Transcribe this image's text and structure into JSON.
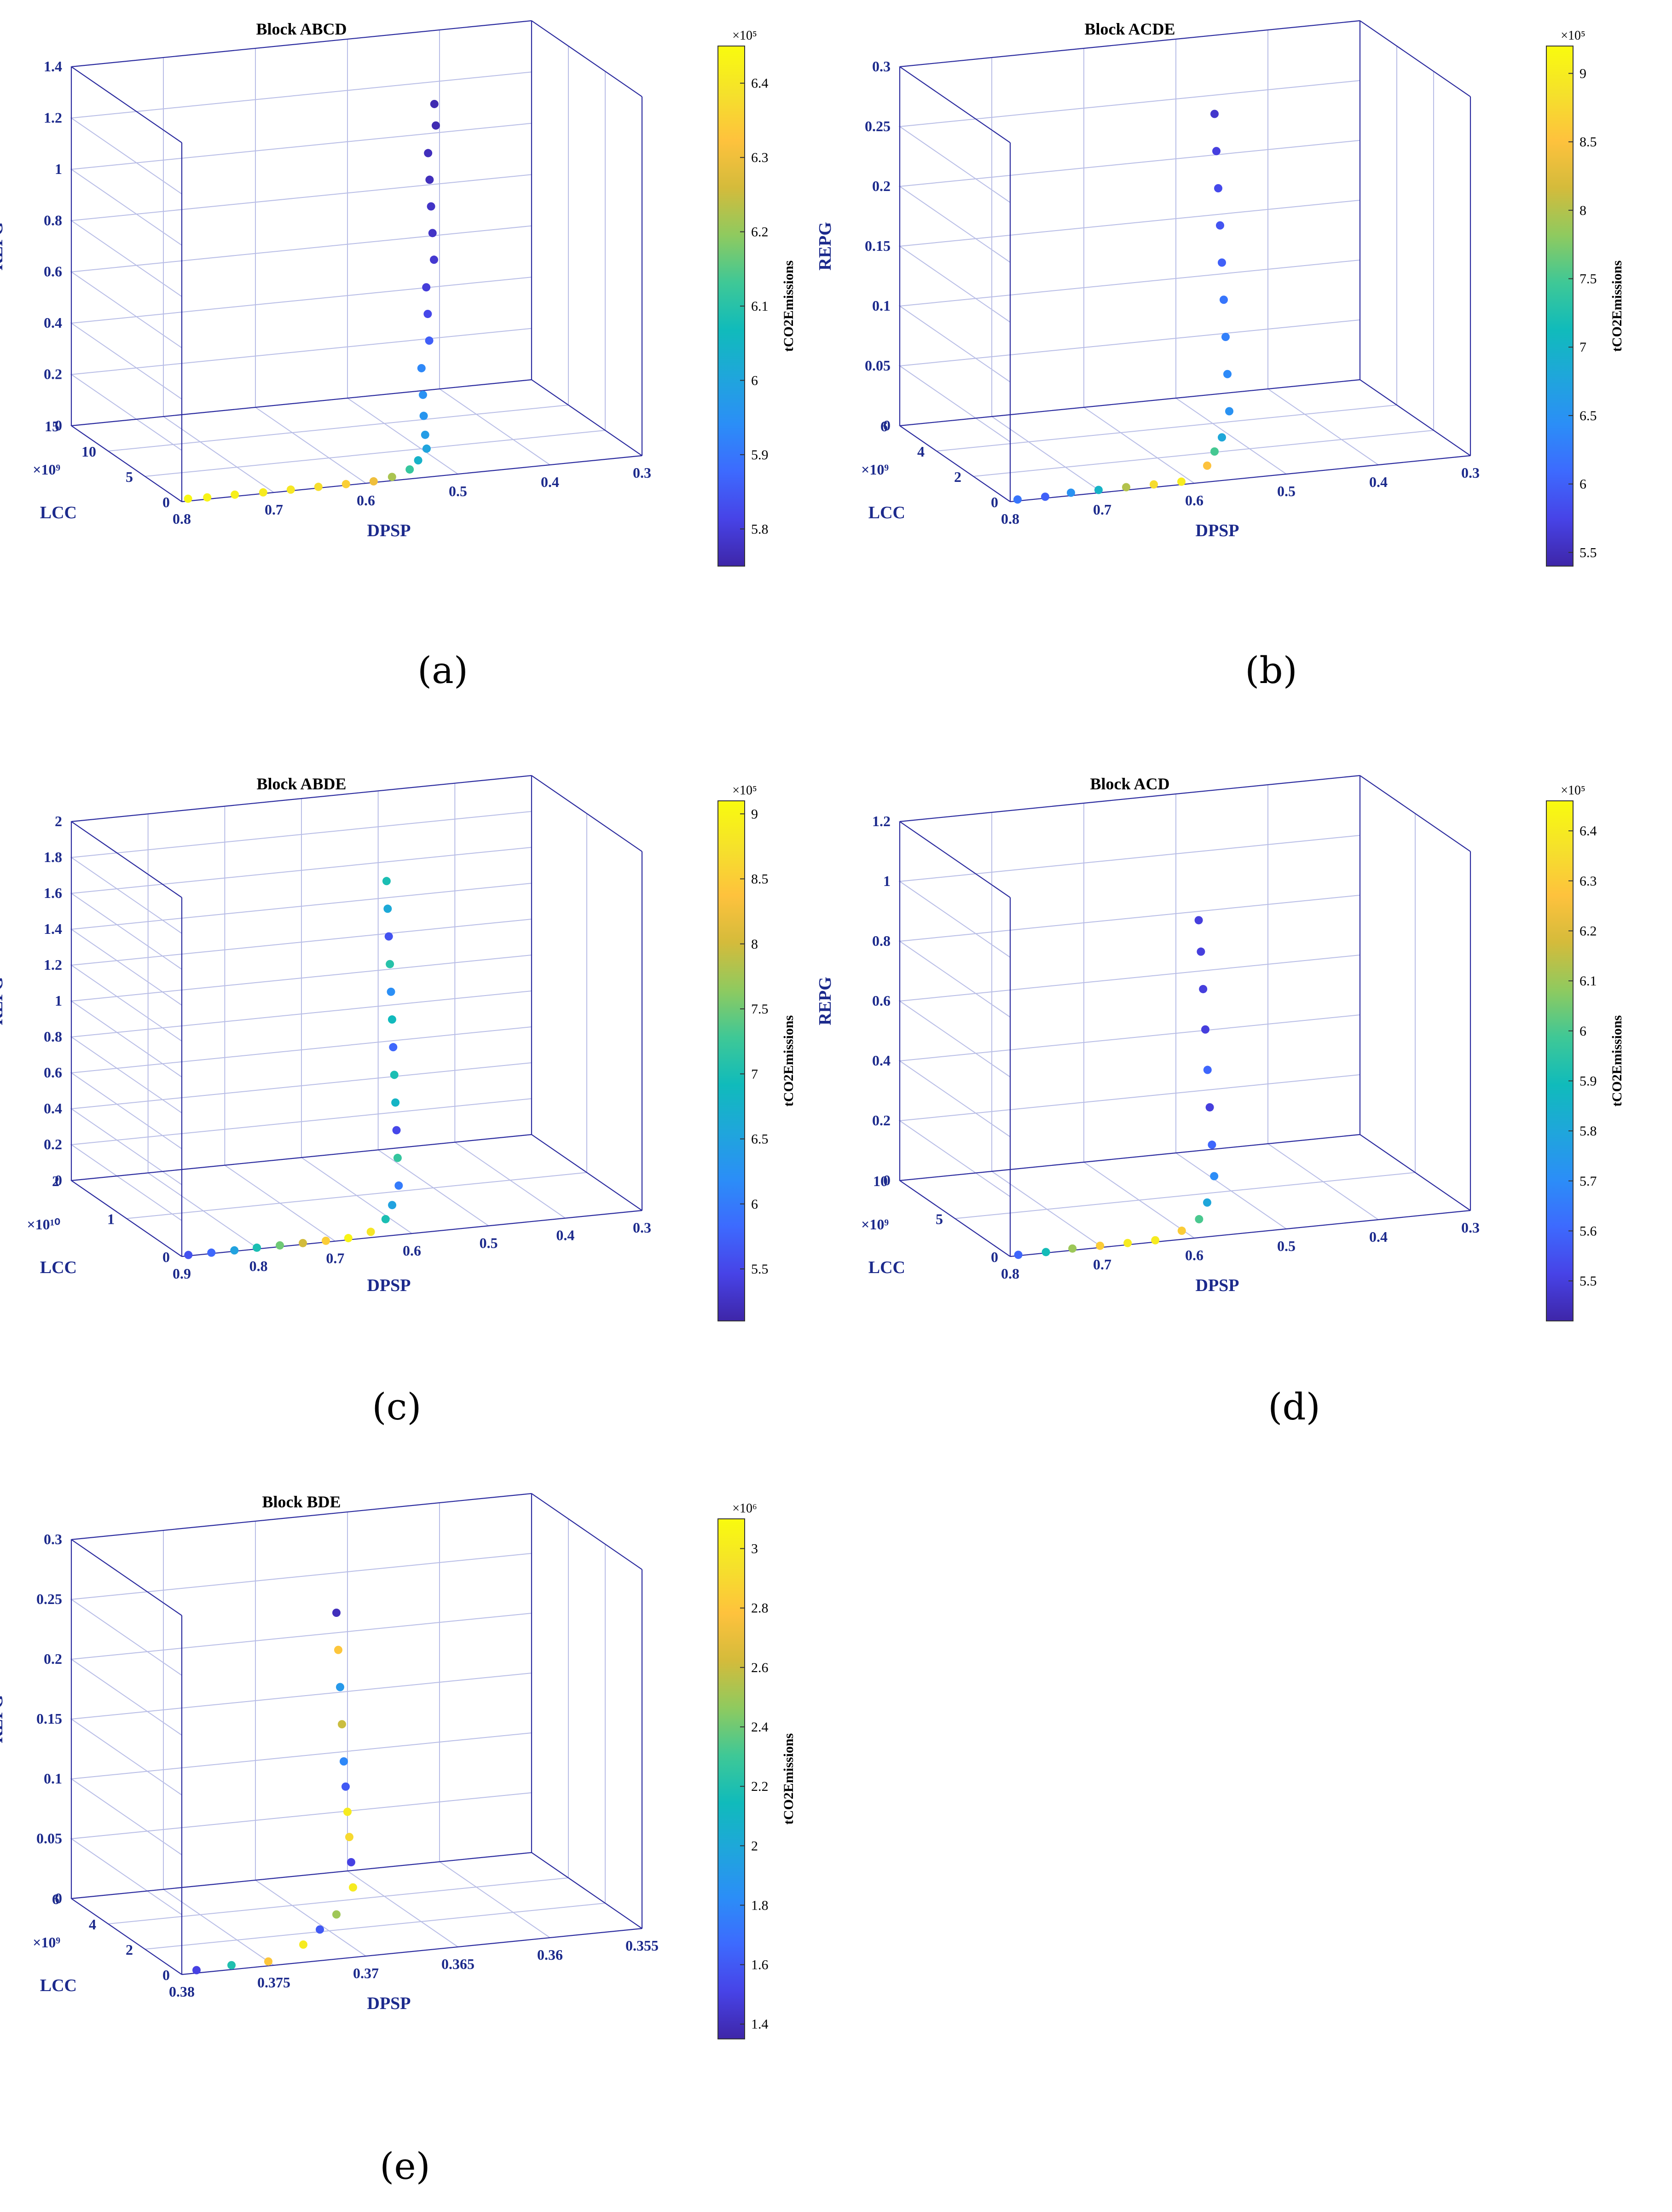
{
  "figure": {
    "colormap": [
      "#3e26a8",
      "#4743e7",
      "#3d6afe",
      "#2b8ef7",
      "#1fa6db",
      "#10bbbb",
      "#3fc896",
      "#8fca5f",
      "#d4bb3b",
      "#fec23d",
      "#f5e12b",
      "#f9fb0e"
    ],
    "panels": [
      {
        "caption": "(a)",
        "chart_data": {
          "type": "scatter3d",
          "title": "Block ABCD",
          "xlabel": "DPSP",
          "ylabel": "LCC",
          "zlabel": "REPG",
          "colorbar_label": "tCO2Emissions",
          "xlim": [
            0.3,
            0.8
          ],
          "x_ticks": [
            "0.8",
            "0.7",
            "0.6",
            "0.5",
            "0.4",
            "0.3"
          ],
          "ylim": [
            0,
            15
          ],
          "y_ticks": [
            "0",
            "5",
            "10",
            "15"
          ],
          "y_exponent": "×10⁹",
          "zlim": [
            0,
            1.4
          ],
          "z_ticks": [
            "0",
            "0.2",
            "0.4",
            "0.6",
            "0.8",
            "1",
            "1.2",
            "1.4"
          ],
          "clim": [
            5.75,
            6.45
          ],
          "c_ticks": [
            "5.8",
            "5.9",
            "6",
            "6.1",
            "6.2",
            "6.3",
            "6.4"
          ],
          "c_exponent": "×10⁵",
          "points": [
            [
              0.79,
              0.4,
              0.0,
              6.44
            ],
            [
              0.77,
              0.3,
              0.0,
              6.43
            ],
            [
              0.74,
              0.3,
              0.0,
              6.42
            ],
            [
              0.71,
              0.2,
              0.0,
              6.41
            ],
            [
              0.68,
              0.2,
              0.0,
              6.4
            ],
            [
              0.65,
              0.2,
              0.0,
              6.38
            ],
            [
              0.62,
              0.2,
              0.0,
              6.35
            ],
            [
              0.59,
              0.2,
              0.0,
              6.3
            ],
            [
              0.57,
              0.2,
              0.01,
              6.22
            ],
            [
              0.55,
              0.3,
              0.03,
              6.12
            ],
            [
              0.54,
              0.4,
              0.06,
              6.04
            ],
            [
              0.53,
              0.5,
              0.1,
              6.0
            ],
            [
              0.53,
              0.7,
              0.15,
              5.98
            ],
            [
              0.53,
              0.9,
              0.22,
              5.96
            ],
            [
              0.53,
              1.0,
              0.3,
              5.95
            ],
            [
              0.53,
              1.2,
              0.4,
              5.93
            ],
            [
              0.52,
              1.4,
              0.5,
              5.86
            ],
            [
              0.52,
              1.6,
              0.6,
              5.82
            ],
            [
              0.52,
              1.8,
              0.7,
              5.8
            ],
            [
              0.51,
              2.0,
              0.8,
              5.79
            ],
            [
              0.51,
              2.2,
              0.9,
              5.78
            ],
            [
              0.51,
              2.4,
              1.0,
              5.78
            ],
            [
              0.51,
              2.6,
              1.1,
              5.77
            ],
            [
              0.51,
              2.8,
              1.2,
              5.77
            ],
            [
              0.5,
              3.0,
              1.3,
              5.76
            ],
            [
              0.5,
              3.2,
              1.38,
              5.76
            ]
          ]
        }
      },
      {
        "caption": "(b)",
        "chart_data": {
          "type": "scatter3d",
          "title": "Block ACDE",
          "xlabel": "DPSP",
          "ylabel": "LCC",
          "zlabel": "REPG",
          "colorbar_label": "tCO2Emissions",
          "xlim": [
            0.3,
            0.8
          ],
          "x_ticks": [
            "0.8",
            "0.7",
            "0.6",
            "0.5",
            "0.4",
            "0.3"
          ],
          "ylim": [
            0,
            6
          ],
          "y_ticks": [
            "0",
            "2",
            "4",
            "6"
          ],
          "y_exponent": "×10⁹",
          "zlim": [
            0,
            0.3
          ],
          "z_ticks": [
            "0",
            "0.05",
            "0.1",
            "0.15",
            "0.2",
            "0.25",
            "0.3"
          ],
          "clim": [
            5.4,
            9.2
          ],
          "c_ticks": [
            "5.5",
            "6",
            "6.5",
            "7",
            "7.5",
            "8",
            "8.5",
            "9"
          ],
          "c_exponent": "×10⁵",
          "points": [
            [
              0.79,
              0.1,
              0.0,
              6.2
            ],
            [
              0.76,
              0.1,
              0.0,
              6.0
            ],
            [
              0.73,
              0.2,
              0.0,
              6.5
            ],
            [
              0.7,
              0.2,
              0.0,
              7.0
            ],
            [
              0.67,
              0.2,
              0.0,
              8.0
            ],
            [
              0.64,
              0.2,
              0.0,
              8.8
            ],
            [
              0.61,
              0.2,
              0.0,
              9.0
            ],
            [
              0.58,
              0.3,
              0.01,
              8.5
            ],
            [
              0.57,
              0.4,
              0.02,
              7.5
            ],
            [
              0.56,
              0.5,
              0.03,
              6.8
            ],
            [
              0.55,
              0.6,
              0.05,
              6.5
            ],
            [
              0.55,
              0.7,
              0.08,
              6.4
            ],
            [
              0.55,
              0.8,
              0.11,
              6.3
            ],
            [
              0.55,
              0.9,
              0.14,
              6.2
            ],
            [
              0.55,
              1.0,
              0.17,
              6.0
            ],
            [
              0.55,
              1.1,
              0.2,
              5.9
            ],
            [
              0.55,
              1.2,
              0.23,
              5.8
            ],
            [
              0.55,
              1.3,
              0.26,
              5.7
            ],
            [
              0.55,
              1.4,
              0.29,
              5.6
            ]
          ]
        }
      },
      {
        "caption": "(c)",
        "chart_data": {
          "type": "scatter3d",
          "title": "Block ABDE",
          "xlabel": "DPSP",
          "ylabel": "LCC",
          "zlabel": "REPG",
          "colorbar_label": "tCO2Emissions",
          "xlim": [
            0.3,
            0.9
          ],
          "x_ticks": [
            "0.9",
            "0.8",
            "0.7",
            "0.6",
            "0.5",
            "0.4",
            "0.3"
          ],
          "ylim": [
            0,
            2
          ],
          "y_ticks": [
            "0",
            "1",
            "2"
          ],
          "y_exponent": "×10¹⁰",
          "zlim": [
            0,
            2
          ],
          "z_ticks": [
            "0",
            "0.2",
            "0.4",
            "0.6",
            "0.8",
            "1",
            "1.2",
            "1.4",
            "1.6",
            "1.8",
            "2"
          ],
          "clim": [
            5.1,
            9.1
          ],
          "c_ticks": [
            "5.5",
            "6",
            "6.5",
            "7",
            "7.5",
            "8",
            "8.5",
            "9"
          ],
          "c_exponent": "×10⁵",
          "points": [
            [
              0.89,
              0.02,
              0.0,
              5.6
            ],
            [
              0.86,
              0.02,
              0.0,
              5.8
            ],
            [
              0.83,
              0.02,
              0.0,
              6.5
            ],
            [
              0.8,
              0.03,
              0.0,
              7.0
            ],
            [
              0.77,
              0.03,
              0.0,
              7.5
            ],
            [
              0.74,
              0.03,
              0.0,
              8.0
            ],
            [
              0.71,
              0.03,
              0.0,
              8.5
            ],
            [
              0.68,
              0.04,
              0.0,
              9.0
            ],
            [
              0.65,
              0.05,
              0.02,
              8.8
            ],
            [
              0.63,
              0.06,
              0.08,
              7.0
            ],
            [
              0.62,
              0.08,
              0.15,
              6.5
            ],
            [
              0.61,
              0.1,
              0.25,
              6.0
            ],
            [
              0.61,
              0.12,
              0.4,
              7.2
            ],
            [
              0.61,
              0.14,
              0.55,
              5.5
            ],
            [
              0.61,
              0.16,
              0.7,
              6.8
            ],
            [
              0.61,
              0.18,
              0.85,
              7.0
            ],
            [
              0.61,
              0.2,
              1.0,
              5.8
            ],
            [
              0.61,
              0.22,
              1.15,
              6.9
            ],
            [
              0.61,
              0.24,
              1.3,
              6.2
            ],
            [
              0.61,
              0.26,
              1.45,
              7.1
            ],
            [
              0.61,
              0.28,
              1.6,
              5.6
            ],
            [
              0.61,
              0.3,
              1.75,
              6.6
            ],
            [
              0.61,
              0.32,
              1.9,
              7.0
            ]
          ]
        }
      },
      {
        "caption": "(d)",
        "chart_data": {
          "type": "scatter3d",
          "title": "Block ACD",
          "xlabel": "DPSP",
          "ylabel": "LCC",
          "zlabel": "REPG",
          "colorbar_label": "tCO2Emissions",
          "xlim": [
            0.3,
            0.8
          ],
          "x_ticks": [
            "0.8",
            "0.7",
            "0.6",
            "0.5",
            "0.4",
            "0.3"
          ],
          "ylim": [
            0,
            10
          ],
          "y_ticks": [
            "0",
            "5",
            "10"
          ],
          "y_exponent": "×10⁹",
          "zlim": [
            0,
            1.2
          ],
          "z_ticks": [
            "0",
            "0.2",
            "0.4",
            "0.6",
            "0.8",
            "1",
            "1.2"
          ],
          "clim": [
            5.42,
            6.46
          ],
          "c_ticks": [
            "5.5",
            "5.6",
            "5.7",
            "5.8",
            "5.9",
            "6",
            "6.1",
            "6.2",
            "6.3",
            "6.4"
          ],
          "c_exponent": "×10⁵",
          "points": [
            [
              0.79,
              0.1,
              0.0,
              5.6
            ],
            [
              0.76,
              0.1,
              0.0,
              5.9
            ],
            [
              0.73,
              0.2,
              0.0,
              6.1
            ],
            [
              0.7,
              0.2,
              0.0,
              6.3
            ],
            [
              0.67,
              0.2,
              0.0,
              6.4
            ],
            [
              0.64,
              0.2,
              0.0,
              6.4
            ],
            [
              0.61,
              0.3,
              0.02,
              6.3
            ],
            [
              0.59,
              0.4,
              0.05,
              6.0
            ],
            [
              0.58,
              0.5,
              0.1,
              5.8
            ],
            [
              0.57,
              0.7,
              0.18,
              5.7
            ],
            [
              0.57,
              0.9,
              0.28,
              5.6
            ],
            [
              0.57,
              1.1,
              0.4,
              5.5
            ],
            [
              0.57,
              1.3,
              0.52,
              5.6
            ],
            [
              0.57,
              1.5,
              0.65,
              5.5
            ],
            [
              0.57,
              1.7,
              0.78,
              5.5
            ],
            [
              0.57,
              1.9,
              0.9,
              5.5
            ],
            [
              0.57,
              2.1,
              1.0,
              5.5
            ]
          ]
        }
      },
      {
        "caption": "(e)",
        "chart_data": {
          "type": "scatter3d",
          "title": "Block BDE",
          "xlabel": "DPSP",
          "ylabel": "LCC",
          "zlabel": "REPG",
          "colorbar_label": "tCO2Emissions",
          "xlim": [
            0.355,
            0.38
          ],
          "x_ticks": [
            "0.38",
            "0.375",
            "0.37",
            "0.365",
            "0.36",
            "0.355"
          ],
          "ylim": [
            0,
            6
          ],
          "y_ticks": [
            "0",
            "2",
            "4",
            "6"
          ],
          "y_exponent": "×10⁹",
          "zlim": [
            0,
            0.3
          ],
          "z_ticks": [
            "0",
            "0.05",
            "0.1",
            "0.15",
            "0.2",
            "0.25",
            "0.3"
          ],
          "clim": [
            1.35,
            3.1
          ],
          "c_ticks": [
            "1.4",
            "1.6",
            "1.8",
            "2",
            "2.2",
            "2.4",
            "2.6",
            "2.8",
            "3"
          ],
          "c_exponent": "×10⁶",
          "points": [
            [
              0.379,
              0.2,
              0.0,
              1.5
            ],
            [
              0.377,
              0.3,
              0.0,
              2.2
            ],
            [
              0.375,
              0.3,
              0.0,
              2.8
            ],
            [
              0.373,
              0.4,
              0.01,
              3.0
            ],
            [
              0.372,
              0.5,
              0.02,
              1.6
            ],
            [
              0.371,
              0.6,
              0.03,
              2.5
            ],
            [
              0.37,
              0.7,
              0.05,
              3.0
            ],
            [
              0.37,
              0.8,
              0.07,
              1.5
            ],
            [
              0.37,
              0.9,
              0.09,
              2.9
            ],
            [
              0.37,
              1.0,
              0.11,
              3.0
            ],
            [
              0.37,
              1.1,
              0.13,
              1.6
            ],
            [
              0.37,
              1.2,
              0.15,
              1.8
            ],
            [
              0.37,
              1.3,
              0.18,
              2.6
            ],
            [
              0.37,
              1.4,
              0.21,
              1.9
            ],
            [
              0.37,
              1.5,
              0.24,
              2.8
            ],
            [
              0.37,
              1.6,
              0.27,
              1.4
            ]
          ]
        }
      }
    ]
  }
}
